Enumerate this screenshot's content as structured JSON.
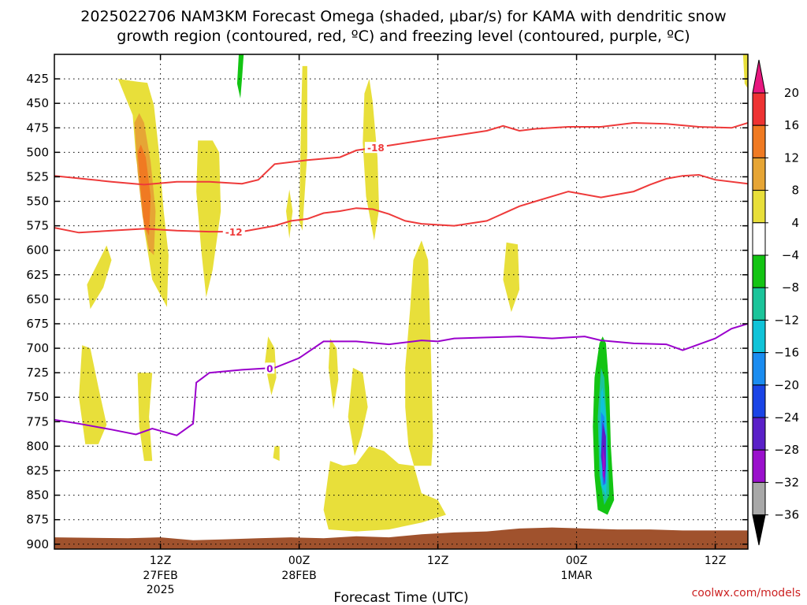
{
  "title_line1": "2025022706 NAM3KM Forecast Omega (shaded, μbar/s) for KAMA with dendritic snow",
  "title_line2": "growth region (contoured, red, ºC) and freezing level (contoured, purple, ºC)",
  "credit": "coolwx.com/models",
  "colors": {
    "dgz_contour": "#ee3a3a",
    "freezing_contour": "#9a00cc",
    "terrain": "#a0522d",
    "credit": "#cc2222"
  },
  "chart_data": {
    "type": "heatmap",
    "xlabel": "Forecast Time (UTC)",
    "ylabel": "",
    "x_range_hours": [
      -0.5,
      42
    ],
    "ylim": [
      905,
      400
    ],
    "y_ticks": [
      425,
      450,
      475,
      500,
      525,
      550,
      575,
      600,
      625,
      650,
      675,
      700,
      725,
      750,
      775,
      800,
      825,
      850,
      875,
      900
    ],
    "x_ticks": [
      {
        "hour": 6,
        "label": "12Z",
        "date": "27FEB",
        "year": "2025"
      },
      {
        "hour": 14.5,
        "label": "00Z",
        "date": "28FEB",
        "year": ""
      },
      {
        "hour": 23,
        "label": "12Z",
        "date": "",
        "year": ""
      },
      {
        "hour": 31.5,
        "label": "00Z",
        "date": "1MAR",
        "year": ""
      },
      {
        "hour": 40,
        "label": "12Z",
        "date": "",
        "year": ""
      }
    ],
    "grid": true,
    "colorbar": {
      "labels": [
        "20",
        "16",
        "12",
        "8",
        "4",
        "−4",
        "−8",
        "−12",
        "−16",
        "−20",
        "−24",
        "−28",
        "−32",
        "−36"
      ],
      "colors": [
        "#e8187f",
        "#ee3333",
        "#f07a22",
        "#e6a535",
        "#e8df3a",
        "#ffffff",
        "#13c413",
        "#1bc49a",
        "#10c3d8",
        "#1a8cf0",
        "#1a44e6",
        "#5a20c8",
        "#9a10cc",
        "#a8a8a8",
        "#000000"
      ]
    },
    "contours": [
      {
        "name": "-18",
        "label_at_hour": 19.2,
        "points": [
          [
            -0.5,
            524
          ],
          [
            3,
            530
          ],
          [
            5,
            533
          ],
          [
            7,
            530
          ],
          [
            9,
            530
          ],
          [
            11,
            532
          ],
          [
            12,
            528
          ],
          [
            13,
            512
          ],
          [
            15,
            508
          ],
          [
            17,
            505
          ],
          [
            18,
            498
          ],
          [
            20,
            493
          ],
          [
            22,
            488
          ],
          [
            24,
            483
          ],
          [
            26,
            478
          ],
          [
            27,
            473
          ],
          [
            28,
            478
          ],
          [
            29,
            476
          ],
          [
            31,
            474
          ],
          [
            33,
            474
          ],
          [
            35,
            470
          ],
          [
            37,
            471
          ],
          [
            39,
            474
          ],
          [
            41,
            475
          ],
          [
            42,
            470
          ]
        ]
      },
      {
        "name": "-12",
        "label_at_hour": 10.5,
        "points": [
          [
            -0.5,
            577
          ],
          [
            1,
            582
          ],
          [
            3,
            580
          ],
          [
            5,
            578
          ],
          [
            7,
            580
          ],
          [
            9,
            581
          ],
          [
            11,
            581
          ],
          [
            12,
            578
          ],
          [
            13,
            575
          ],
          [
            14,
            570
          ],
          [
            15,
            568
          ],
          [
            16,
            562
          ],
          [
            17,
            560
          ],
          [
            18,
            557
          ],
          [
            19,
            558
          ],
          [
            20,
            563
          ],
          [
            21,
            570
          ],
          [
            22,
            573
          ],
          [
            24,
            575
          ],
          [
            26,
            570
          ],
          [
            28,
            555
          ],
          [
            29,
            550
          ],
          [
            31,
            540
          ],
          [
            33,
            546
          ],
          [
            35,
            540
          ],
          [
            36,
            533
          ],
          [
            37,
            527
          ],
          [
            38,
            524
          ],
          [
            39,
            523
          ],
          [
            40,
            528
          ],
          [
            42,
            532
          ]
        ]
      },
      {
        "name": "0",
        "label_at_hour": 12.7,
        "points": [
          [
            -0.5,
            773
          ],
          [
            1,
            777
          ],
          [
            3,
            783
          ],
          [
            4.5,
            788
          ],
          [
            5.5,
            782
          ],
          [
            7,
            789
          ],
          [
            8,
            777
          ],
          [
            8.2,
            735
          ],
          [
            9,
            725
          ],
          [
            11,
            722
          ],
          [
            13,
            720
          ],
          [
            14.5,
            710
          ],
          [
            16,
            693
          ],
          [
            18,
            693
          ],
          [
            20,
            696
          ],
          [
            22,
            692
          ],
          [
            23,
            693
          ],
          [
            24,
            690
          ],
          [
            26,
            689
          ],
          [
            28,
            688
          ],
          [
            30,
            690
          ],
          [
            32,
            688
          ],
          [
            33,
            692
          ],
          [
            35,
            695
          ],
          [
            37,
            696
          ],
          [
            38,
            702
          ],
          [
            40,
            690
          ],
          [
            41,
            680
          ],
          [
            42,
            675
          ]
        ]
      }
    ],
    "terrain_top": [
      [
        -0.5,
        893
      ],
      [
        4,
        894
      ],
      [
        6,
        893
      ],
      [
        8,
        896
      ],
      [
        10,
        895
      ],
      [
        12,
        894
      ],
      [
        14,
        893
      ],
      [
        16,
        894
      ],
      [
        18,
        892
      ],
      [
        20,
        893
      ],
      [
        22,
        890
      ],
      [
        24,
        888
      ],
      [
        26,
        887
      ],
      [
        28,
        884
      ],
      [
        30,
        883
      ],
      [
        32,
        884
      ],
      [
        34,
        885
      ],
      [
        36,
        885
      ],
      [
        38,
        886
      ],
      [
        40,
        886
      ],
      [
        42,
        886
      ]
    ],
    "omega_regions": [
      {
        "value": 6,
        "points": [
          [
            3.4,
            425
          ],
          [
            4.3,
            462
          ],
          [
            4.5,
            505
          ],
          [
            4.8,
            538
          ],
          [
            5.0,
            578
          ],
          [
            5.5,
            630
          ],
          [
            6.4,
            658
          ],
          [
            6.5,
            605
          ],
          [
            6.2,
            560
          ],
          [
            5.9,
            498
          ],
          [
            5.6,
            452
          ],
          [
            5.2,
            429
          ],
          [
            4.6,
            428
          ]
        ]
      },
      {
        "value": 10,
        "points": [
          [
            4.4,
            470
          ],
          [
            4.6,
            520
          ],
          [
            4.9,
            565
          ],
          [
            5.3,
            600
          ],
          [
            5.6,
            605
          ],
          [
            5.7,
            560
          ],
          [
            5.4,
            510
          ],
          [
            5.0,
            470
          ],
          [
            4.7,
            460
          ]
        ]
      },
      {
        "value": 14,
        "points": [
          [
            4.6,
            500
          ],
          [
            4.8,
            540
          ],
          [
            5.0,
            575
          ],
          [
            5.3,
            585
          ],
          [
            5.4,
            545
          ],
          [
            5.1,
            505
          ],
          [
            4.8,
            492
          ]
        ]
      },
      {
        "value": 6,
        "points": [
          [
            2.7,
            595
          ],
          [
            1.5,
            635
          ],
          [
            1.7,
            660
          ],
          [
            2.5,
            638
          ],
          [
            3.0,
            610
          ]
        ]
      },
      {
        "value": 6,
        "points": [
          [
            1.2,
            697
          ],
          [
            1.0,
            750
          ],
          [
            1.4,
            798
          ],
          [
            2.2,
            798
          ],
          [
            2.7,
            778
          ],
          [
            2.2,
            740
          ],
          [
            1.7,
            700
          ]
        ]
      },
      {
        "value": 6,
        "points": [
          [
            4.6,
            725
          ],
          [
            4.7,
            780
          ],
          [
            5.0,
            815
          ],
          [
            5.5,
            815
          ],
          [
            5.3,
            770
          ],
          [
            5.5,
            725
          ]
        ]
      },
      {
        "value": 6,
        "points": [
          [
            8.3,
            488
          ],
          [
            8.2,
            540
          ],
          [
            8.5,
            600
          ],
          [
            8.8,
            648
          ],
          [
            9.2,
            620
          ],
          [
            9.7,
            560
          ],
          [
            9.6,
            500
          ],
          [
            9.2,
            488
          ]
        ]
      },
      {
        "value": 6,
        "points": [
          [
            12.6,
            688
          ],
          [
            12.4,
            715
          ],
          [
            12.8,
            748
          ],
          [
            13.1,
            730
          ],
          [
            13.0,
            700
          ]
        ]
      },
      {
        "value": 6,
        "points": [
          [
            13.9,
            538
          ],
          [
            13.7,
            560
          ],
          [
            13.9,
            588
          ],
          [
            14.1,
            560
          ]
        ]
      },
      {
        "value": 6,
        "points": [
          [
            14.7,
            412
          ],
          [
            14.6,
            480
          ],
          [
            14.5,
            570
          ],
          [
            14.7,
            580
          ],
          [
            15.0,
            500
          ],
          [
            15.0,
            412
          ]
        ]
      },
      {
        "value": 6,
        "points": [
          [
            13.0,
            800
          ],
          [
            12.9,
            812
          ],
          [
            13.3,
            815
          ],
          [
            13.3,
            800
          ]
        ]
      },
      {
        "value": 6,
        "points": [
          [
            16.4,
            690
          ],
          [
            16.3,
            720
          ],
          [
            16.6,
            762
          ],
          [
            16.9,
            732
          ],
          [
            16.8,
            700
          ]
        ]
      },
      {
        "value": 6,
        "points": [
          [
            18.5,
            440
          ],
          [
            18.4,
            490
          ],
          [
            18.6,
            545
          ],
          [
            19.1,
            590
          ],
          [
            19.4,
            558
          ],
          [
            19.3,
            505
          ],
          [
            19.0,
            448
          ],
          [
            18.8,
            425
          ]
        ]
      },
      {
        "value": 6,
        "points": [
          [
            17.8,
            720
          ],
          [
            17.5,
            770
          ],
          [
            17.9,
            810
          ],
          [
            18.3,
            790
          ],
          [
            18.7,
            760
          ],
          [
            18.4,
            725
          ]
        ]
      },
      {
        "value": 6,
        "points": [
          [
            16.4,
            815
          ],
          [
            16.0,
            865
          ],
          [
            16.3,
            885
          ],
          [
            18,
            887
          ],
          [
            20,
            885
          ],
          [
            22,
            878
          ],
          [
            23.5,
            870
          ],
          [
            23.0,
            855
          ],
          [
            22,
            848
          ],
          [
            21.2,
            800
          ],
          [
            21.0,
            760
          ],
          [
            21.0,
            720
          ],
          [
            21.3,
            660
          ],
          [
            21.5,
            610
          ],
          [
            22.0,
            590
          ],
          [
            22.4,
            610
          ],
          [
            22.5,
            660
          ],
          [
            22.6,
            720
          ],
          [
            22.7,
            790
          ],
          [
            22.6,
            820
          ],
          [
            21.5,
            820
          ],
          [
            20.6,
            818
          ],
          [
            19.7,
            805
          ],
          [
            18.8,
            800
          ],
          [
            18.0,
            818
          ],
          [
            17.2,
            820
          ]
        ]
      },
      {
        "value": 6,
        "points": [
          [
            27.2,
            592
          ],
          [
            27.0,
            630
          ],
          [
            27.5,
            663
          ],
          [
            28.0,
            640
          ],
          [
            27.9,
            594
          ]
        ]
      },
      {
        "value": 6,
        "points": [
          [
            41.7,
            400
          ],
          [
            41.8,
            430
          ],
          [
            42.0,
            435
          ],
          [
            42.0,
            400
          ]
        ]
      },
      {
        "value": -6,
        "points": [
          [
            10.8,
            400
          ],
          [
            10.7,
            430
          ],
          [
            10.9,
            445
          ],
          [
            11.0,
            425
          ],
          [
            11.1,
            400
          ]
        ]
      },
      {
        "value": -6,
        "points": [
          [
            32.9,
            695
          ],
          [
            32.6,
            730
          ],
          [
            32.5,
            780
          ],
          [
            32.6,
            830
          ],
          [
            32.8,
            865
          ],
          [
            33.4,
            870
          ],
          [
            33.8,
            855
          ],
          [
            33.6,
            800
          ],
          [
            33.5,
            740
          ],
          [
            33.3,
            695
          ],
          [
            33.1,
            688
          ]
        ]
      },
      {
        "value": -10,
        "points": [
          [
            33.0,
            720
          ],
          [
            32.8,
            770
          ],
          [
            32.9,
            830
          ],
          [
            33.2,
            860
          ],
          [
            33.5,
            850
          ],
          [
            33.4,
            790
          ],
          [
            33.2,
            730
          ]
        ]
      },
      {
        "value": -14,
        "points": [
          [
            33.0,
            745
          ],
          [
            32.9,
            790
          ],
          [
            33.0,
            840
          ],
          [
            33.3,
            850
          ],
          [
            33.4,
            820
          ],
          [
            33.3,
            770
          ],
          [
            33.1,
            740
          ]
        ]
      },
      {
        "value": -18,
        "points": [
          [
            33.0,
            765
          ],
          [
            33.0,
            800
          ],
          [
            33.1,
            840
          ],
          [
            33.3,
            838
          ],
          [
            33.3,
            800
          ],
          [
            33.2,
            770
          ]
        ]
      },
      {
        "value": -26,
        "points": [
          [
            33.1,
            775
          ],
          [
            33.0,
            810
          ],
          [
            33.2,
            840
          ],
          [
            33.3,
            820
          ],
          [
            33.3,
            790
          ]
        ]
      },
      {
        "value": -30,
        "points": [
          [
            33.1,
            800
          ],
          [
            33.1,
            830
          ],
          [
            33.2,
            835
          ],
          [
            33.25,
            815
          ]
        ]
      }
    ]
  }
}
